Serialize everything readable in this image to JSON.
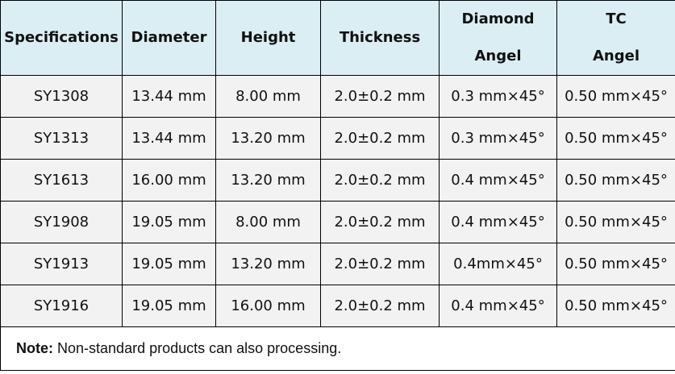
{
  "table": {
    "header": [
      "Specifications",
      "Diameter",
      "Height",
      "Thickness",
      "Diamond Angel",
      "TC Angel"
    ],
    "rows": [
      [
        "SY1308",
        "13.44 mm",
        "8.00 mm",
        "2.0±0.2 mm",
        "0.3 mm×45°",
        "0.50 mm×45°"
      ],
      [
        "SY1313",
        "13.44 mm",
        "13.20 mm",
        "2.0±0.2 mm",
        "0.3 mm×45°",
        "0.50 mm×45°"
      ],
      [
        "SY1613",
        "16.00 mm",
        "13.20 mm",
        "2.0±0.2 mm",
        "0.4 mm×45°",
        "0.50 mm×45°"
      ],
      [
        "SY1908",
        "19.05 mm",
        "8.00 mm",
        "2.0±0.2 mm",
        "0.4 mm×45°",
        "0.50 mm×45°"
      ],
      [
        "SY1913",
        "19.05 mm",
        "13.20 mm",
        "2.0±0.2 mm",
        "0.4mm×45°",
        "0.50 mm×45°"
      ],
      [
        "SY1916",
        "19.05 mm",
        "16.00 mm",
        "2.0±0.2 mm",
        "0.4 mm×45°",
        "0.50 mm×45°"
      ]
    ]
  },
  "note": {
    "label": "Note:",
    "text": "Non-standard products can also processing."
  }
}
